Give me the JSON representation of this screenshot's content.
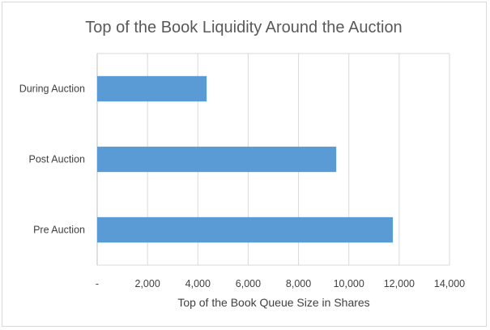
{
  "chart_data": {
    "type": "bar",
    "orientation": "horizontal",
    "title": "Top of the Book Liquidity Around the Auction",
    "xlabel": "Top of the Book Queue Size in Shares",
    "ylabel": "",
    "categories": [
      "During Auction",
      "Post Auction",
      "Pre Auction"
    ],
    "values": [
      4350,
      9500,
      11750
    ],
    "xlim": [
      0,
      14000
    ],
    "x_ticks": [
      0,
      2000,
      4000,
      6000,
      8000,
      10000,
      12000,
      14000
    ],
    "x_tick_labels": [
      "-",
      "2,000",
      "4,000",
      "6,000",
      "8,000",
      "10,000",
      "12,000",
      "14,000"
    ],
    "bar_color": "#5b9bd5",
    "grid": "vertical",
    "legend": "none"
  }
}
